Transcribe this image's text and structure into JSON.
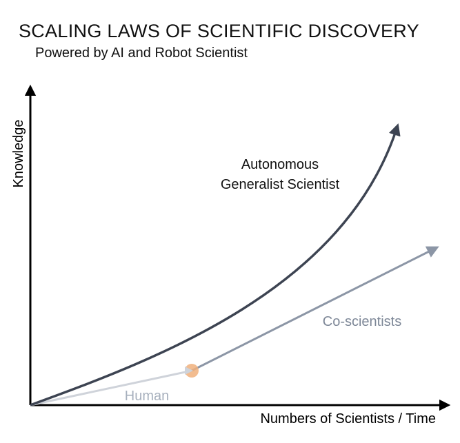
{
  "title": "SCALING LAWS OF SCIENTIFIC DISCOVERY",
  "subtitle": "Powered by AI and Robot Scientist",
  "axes": {
    "y_label": "Knowledge",
    "x_label": "Numbers of Scientists / Time"
  },
  "curves": {
    "autonomous": {
      "label_line1": "Autonomous",
      "label_line2": "Generalist Scientist",
      "color": "#3d4452"
    },
    "coscientists": {
      "label": "Co-scientists",
      "color": "#8c96a6"
    },
    "human": {
      "label": "Human",
      "color": "#cfd3da"
    }
  },
  "transition_marker_color": "#f0b07c",
  "axis_color": "#000000"
}
